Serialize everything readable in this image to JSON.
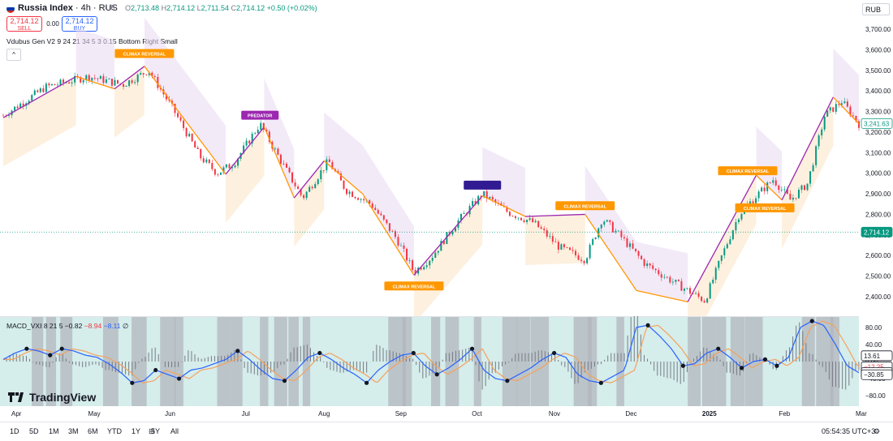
{
  "header": {
    "symbol": "Russia Index",
    "interval": " · 4h · RUS",
    "more": "○ ⊞",
    "ohlc": {
      "o_label": "O",
      "o": "2,713.48",
      "h_label": "H",
      "h": "2,714.12",
      "l_label": "L",
      "l": "2,711.54",
      "c_label": "C",
      "c": "2,714.12",
      "change": "+0.50 (+0.02%)"
    },
    "sell_price": "2,714.12",
    "sell_label": "SELL",
    "spread": "0.00",
    "buy_price": "2,714.12",
    "buy_label": "BUY",
    "indicator": "Vdubus Gen V2 9 24 21 34 5 3 0.15 Bottom Right Small",
    "collapse": "^",
    "currency": "RUB"
  },
  "macd_legend": {
    "name": "MACD_VXI 8 21 5",
    "v1": "−0.82",
    "v2": "−8.94",
    "v3": "−8.11",
    "v4": "∅"
  },
  "brand": "TradingView",
  "bottom": {
    "ranges": [
      "1D",
      "5D",
      "1M",
      "3M",
      "6M",
      "YTD",
      "1Y",
      "5Y",
      "All"
    ],
    "clock": "05:54:35 UTC+3"
  },
  "colors": {
    "up": "#089981",
    "down": "#f23645",
    "zig": "#9c27b0",
    "orange": "#ff9800",
    "navy": "#311b92",
    "macd": "#2962ff",
    "signal": "#f5a25d",
    "teal": "#b2dfdb",
    "gray": "#b2b5be"
  },
  "chart_data": [
    {
      "type": "candlestick",
      "title": "Russia Index",
      "x": [
        "Apr",
        "May",
        "Jun",
        "Jul",
        "Aug",
        "Sep",
        "Oct",
        "Nov",
        "Dec",
        "2025",
        "Feb",
        "Mar"
      ],
      "y_ticks": [
        "3,700.00",
        "3,600.00",
        "3,500.00",
        "3,400.00",
        "3,300.00",
        "3,200.00",
        "3,100.00",
        "3,000.00",
        "2,900.00",
        "2,800.00",
        "2,700.00",
        "2,600.00",
        "2,500.00",
        "2,400.00"
      ],
      "ylim": [
        2360,
        3760
      ],
      "price_path": [
        {
          "t": 0.0,
          "p": 3280
        },
        {
          "t": 0.05,
          "p": 3420
        },
        {
          "t": 0.1,
          "p": 3470
        },
        {
          "t": 0.14,
          "p": 3430
        },
        {
          "t": 0.17,
          "p": 3500
        },
        {
          "t": 0.2,
          "p": 3300
        },
        {
          "t": 0.23,
          "p": 3080
        },
        {
          "t": 0.25,
          "p": 3000
        },
        {
          "t": 0.27,
          "p": 3050
        },
        {
          "t": 0.3,
          "p": 3240
        },
        {
          "t": 0.33,
          "p": 3020
        },
        {
          "t": 0.35,
          "p": 2880
        },
        {
          "t": 0.38,
          "p": 3060
        },
        {
          "t": 0.4,
          "p": 2920
        },
        {
          "t": 0.43,
          "p": 2850
        },
        {
          "t": 0.46,
          "p": 2680
        },
        {
          "t": 0.48,
          "p": 2520
        },
        {
          "t": 0.5,
          "p": 2590
        },
        {
          "t": 0.53,
          "p": 2760
        },
        {
          "t": 0.56,
          "p": 2900
        },
        {
          "t": 0.59,
          "p": 2810
        },
        {
          "t": 0.62,
          "p": 2760
        },
        {
          "t": 0.65,
          "p": 2640
        },
        {
          "t": 0.68,
          "p": 2580
        },
        {
          "t": 0.7,
          "p": 2780
        },
        {
          "t": 0.72,
          "p": 2700
        },
        {
          "t": 0.75,
          "p": 2560
        },
        {
          "t": 0.78,
          "p": 2480
        },
        {
          "t": 0.8,
          "p": 2430
        },
        {
          "t": 0.82,
          "p": 2380
        },
        {
          "t": 0.84,
          "p": 2600
        },
        {
          "t": 0.86,
          "p": 2800
        },
        {
          "t": 0.88,
          "p": 2890
        },
        {
          "t": 0.9,
          "p": 2970
        },
        {
          "t": 0.92,
          "p": 2870
        },
        {
          "t": 0.94,
          "p": 2950
        },
        {
          "t": 0.96,
          "p": 3280
        },
        {
          "t": 0.98,
          "p": 3350
        },
        {
          "t": 1.0,
          "p": 3240
        }
      ],
      "zigzag": [
        {
          "t": 0.0,
          "p": 3270
        },
        {
          "t": 0.085,
          "p": 3470
        },
        {
          "t": 0.13,
          "p": 3410
        },
        {
          "t": 0.165,
          "p": 3520
        },
        {
          "t": 0.26,
          "p": 2995
        },
        {
          "t": 0.305,
          "p": 3225
        },
        {
          "t": 0.34,
          "p": 2880
        },
        {
          "t": 0.375,
          "p": 3060
        },
        {
          "t": 0.42,
          "p": 2900
        },
        {
          "t": 0.48,
          "p": 2505
        },
        {
          "t": 0.56,
          "p": 2890
        },
        {
          "t": 0.61,
          "p": 2790
        },
        {
          "t": 0.68,
          "p": 2800
        },
        {
          "t": 0.74,
          "p": 2430
        },
        {
          "t": 0.8,
          "p": 2375
        },
        {
          "t": 0.88,
          "p": 2990
        },
        {
          "t": 0.91,
          "p": 2870
        },
        {
          "t": 0.97,
          "p": 3370
        },
        {
          "t": 1.0,
          "p": 3241
        }
      ],
      "annotations": [
        {
          "text": "CLIMAX REVERSAL",
          "t": 0.165,
          "p": 3580,
          "color": "orange"
        },
        {
          "text": "PREDATOR",
          "t": 0.3,
          "p": 3280,
          "color": "purple"
        },
        {
          "text": "",
          "t": 0.56,
          "p": 2940,
          "color": "navy"
        },
        {
          "text": "CLIMAX REVERSAL",
          "t": 0.48,
          "p": 2450,
          "color": "orange"
        },
        {
          "text": "CLIMAX REVERSAL",
          "t": 0.68,
          "p": 2840,
          "color": "orange"
        },
        {
          "text": "CLIMAX REVERSAL",
          "t": 0.87,
          "p": 3010,
          "color": "orange"
        },
        {
          "text": "CLIMAX REVERSAL",
          "t": 0.89,
          "p": 2830,
          "color": "orange"
        }
      ],
      "last_price": "2,714.12",
      "last_value": 2714.12,
      "current_price": "3,241.63",
      "current_value": 3241.63
    },
    {
      "type": "line",
      "title": "MACD_VXI 8 21 5",
      "y_ticks": [
        "80.00",
        "40.00",
        "0.00",
        "−40.00",
        "−80.00"
      ],
      "ylim": [
        -90,
        110
      ],
      "values": [
        5,
        20,
        30,
        25,
        15,
        30,
        25,
        15,
        10,
        -5,
        -25,
        -50,
        -45,
        -20,
        -30,
        -40,
        -20,
        -15,
        -5,
        5,
        25,
        5,
        -20,
        -40,
        -45,
        -20,
        10,
        20,
        5,
        -15,
        -30,
        -50,
        -20,
        0,
        15,
        20,
        -10,
        -30,
        -15,
        5,
        30,
        -20,
        -40,
        -45,
        -30,
        -15,
        5,
        20,
        10,
        -30,
        -45,
        -50,
        -35,
        -20,
        80,
        85,
        60,
        30,
        -10,
        -5,
        20,
        30,
        10,
        -15,
        0,
        5,
        -10,
        10,
        80,
        95,
        85,
        40,
        -10,
        -26
      ],
      "series": [
        {
          "name": "MACD"
        },
        {
          "name": "Signal"
        }
      ],
      "scale_labels": [
        {
          "text": "13.61",
          "v": 13.61,
          "bg": "#ffffff",
          "fg": "#131722"
        },
        {
          "text": "−12.25",
          "v": -12.25,
          "bg": "#ffffff",
          "fg": "#f23645"
        },
        {
          "text": "−25.87",
          "v": -25.87,
          "bg": "#ffffff",
          "fg": "#2962ff"
        },
        {
          "text": "−30.85",
          "v": -30.85,
          "bg": "#ffffff",
          "fg": "#131722"
        }
      ]
    }
  ]
}
